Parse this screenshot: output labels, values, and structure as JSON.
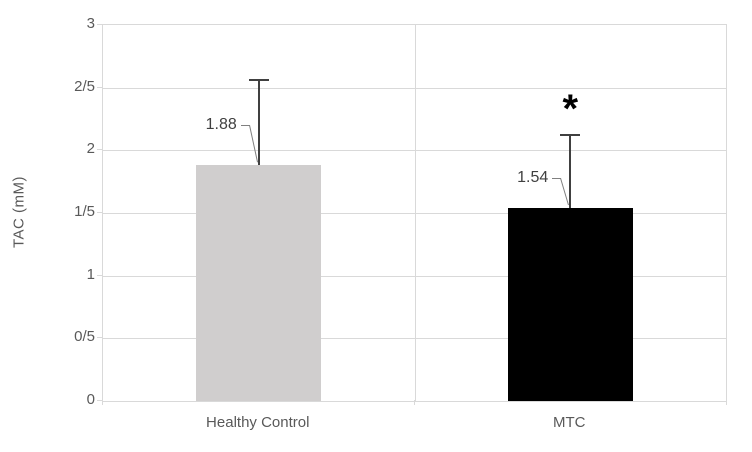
{
  "chart_data": {
    "type": "bar",
    "title": "",
    "xlabel": "",
    "ylabel": "TAC (mM)",
    "categories": [
      "Healthy Control",
      "MTC"
    ],
    "values": [
      1.88,
      1.54
    ],
    "data_labels": [
      "1.88",
      "1.54"
    ],
    "errors_up": [
      0.69,
      0.59
    ],
    "bar_colors": [
      "#d0cece",
      "#000000"
    ],
    "y_ticks": [
      {
        "value": 0,
        "label": "0"
      },
      {
        "value": 0.5,
        "label": "0/5"
      },
      {
        "value": 1,
        "label": "1"
      },
      {
        "value": 1.5,
        "label": "1/5"
      },
      {
        "value": 2,
        "label": "2"
      },
      {
        "value": 2.5,
        "label": "2/5"
      },
      {
        "value": 3,
        "label": "3"
      }
    ],
    "ylim": [
      0,
      3
    ],
    "grid": true,
    "legend": false,
    "annotations": [
      {
        "text": "*",
        "category_index": 1,
        "y": 2.35
      }
    ],
    "colors": {
      "gridline": "#d9d9d9",
      "axis_text": "#595959",
      "data_label_text": "#404040",
      "error_bar": "#404040",
      "leader_line": "#808080",
      "background": "#ffffff"
    }
  }
}
